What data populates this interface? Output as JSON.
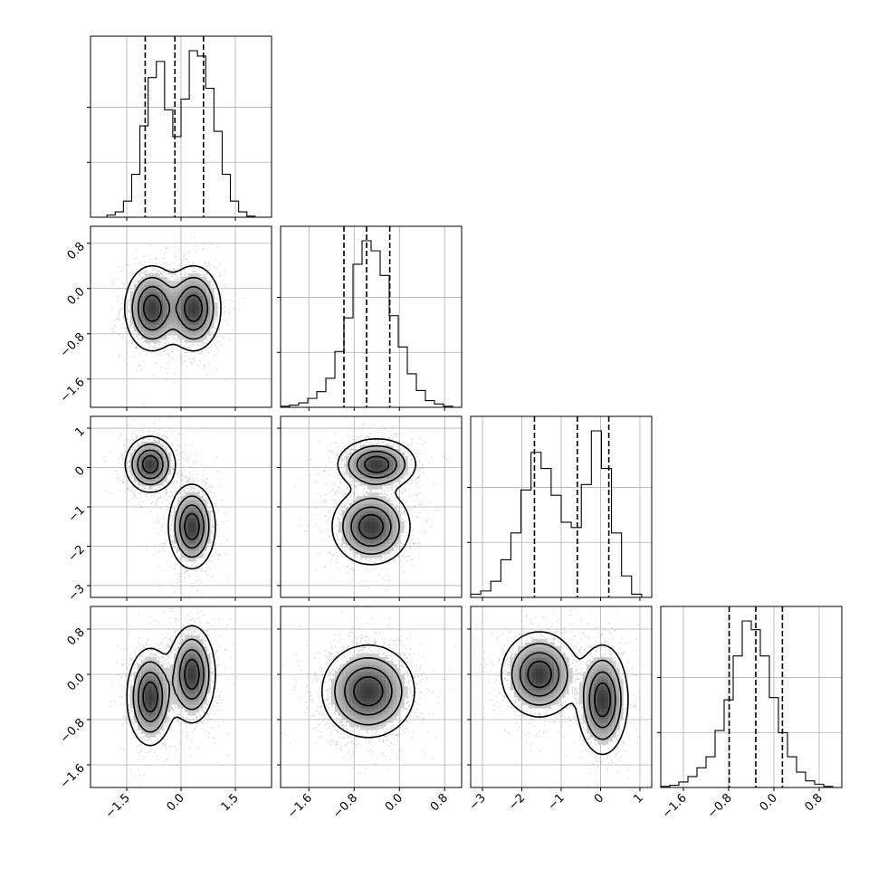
{
  "chart_data": {
    "type": "corner",
    "parameters": [
      {
        "index": 0,
        "range": [
          -2.5,
          2.5
        ],
        "ticks": [
          -1.5,
          0.0,
          1.5
        ],
        "tick_labels": [
          "−1.5",
          "0.0",
          "1.5"
        ],
        "quantiles": [
          -0.99,
          -0.17,
          0.62
        ]
      },
      {
        "index": 1,
        "range": [
          -2.1,
          1.1
        ],
        "ticks": [
          -1.6,
          -0.8,
          0.0,
          0.8
        ],
        "tick_labels": [
          "−1.6",
          "−0.8",
          "0.0",
          "0.8"
        ],
        "quantiles": [
          -0.98,
          -0.58,
          -0.17
        ]
      },
      {
        "index": 2,
        "range": [
          -3.3,
          1.3
        ],
        "ticks": [
          -3,
          -2,
          -1,
          0,
          1
        ],
        "tick_labels": [
          "−3",
          "−2",
          "−1",
          "0",
          "1"
        ],
        "quantiles": [
          -1.68,
          -0.59,
          0.21
        ]
      },
      {
        "index": 3,
        "range": [
          -2.0,
          1.2
        ],
        "ticks": [
          -1.6,
          -0.8,
          0.0,
          0.8
        ],
        "tick_labels": [
          "−1.6",
          "−0.8",
          "0.0",
          "0.8"
        ],
        "quantiles": [
          -0.79,
          -0.32,
          0.15
        ]
      }
    ],
    "histograms": [
      {
        "param": 0,
        "bin_range": [
          -2.5,
          2.5
        ],
        "counts": [
          0,
          0,
          2,
          5,
          15,
          40,
          85,
          130,
          145,
          100,
          75,
          110,
          155,
          150,
          120,
          80,
          40,
          15,
          5,
          1,
          0,
          0
        ]
      },
      {
        "param": 1,
        "bin_range": [
          -2.1,
          1.1
        ],
        "counts": [
          1,
          2,
          4,
          8,
          14,
          26,
          50,
          80,
          128,
          149,
          140,
          118,
          82,
          54,
          30,
          15,
          6,
          3,
          1,
          0
        ]
      },
      {
        "param": 2,
        "bin_range": [
          -3.3,
          1.3
        ],
        "counts": [
          3,
          6,
          15,
          35,
          60,
          100,
          135,
          120,
          95,
          70,
          65,
          105,
          155,
          120,
          60,
          20,
          3,
          0
        ]
      },
      {
        "param": 3,
        "bin_range": [
          -2.0,
          1.2
        ],
        "counts": [
          1,
          2,
          5,
          10,
          18,
          28,
          52,
          80,
          120,
          152,
          144,
          120,
          82,
          50,
          28,
          14,
          6,
          3,
          1,
          0
        ]
      }
    ],
    "joint_panels": [
      {
        "x_param": 0,
        "y_param": 1,
        "modes": [
          {
            "x": -0.8,
            "y": -0.35,
            "sx": 0.35,
            "sy": 0.35,
            "r": 0
          },
          {
            "x": 0.35,
            "y": -0.35,
            "sx": 0.35,
            "sy": 0.35,
            "r": 0
          }
        ]
      },
      {
        "x_param": 0,
        "y_param": 2,
        "modes": [
          {
            "x": -0.85,
            "y": 0.08,
            "sx": 0.32,
            "sy": 0.33,
            "r": 0
          },
          {
            "x": 0.3,
            "y": -1.5,
            "sx": 0.3,
            "sy": 0.5,
            "r": 0
          }
        ]
      },
      {
        "x_param": 1,
        "y_param": 2,
        "modes": [
          {
            "x": -0.4,
            "y": 0.08,
            "sx": 0.32,
            "sy": 0.3,
            "r": 0
          },
          {
            "x": -0.5,
            "y": -1.5,
            "sx": 0.32,
            "sy": 0.45,
            "r": 0
          }
        ]
      },
      {
        "x_param": 0,
        "y_param": 3,
        "modes": [
          {
            "x": -0.85,
            "y": -0.4,
            "sx": 0.3,
            "sy": 0.4,
            "r": 0
          },
          {
            "x": 0.3,
            "y": 0.0,
            "sx": 0.3,
            "sy": 0.4,
            "r": 0
          }
        ]
      },
      {
        "x_param": 1,
        "y_param": 3,
        "modes": [
          {
            "x": -0.55,
            "y": -0.3,
            "sx": 0.38,
            "sy": 0.38,
            "r": 0
          }
        ]
      },
      {
        "x_param": 2,
        "y_param": 3,
        "modes": [
          {
            "x": -1.55,
            "y": 0.0,
            "sx": 0.45,
            "sy": 0.35,
            "r": 0
          },
          {
            "x": 0.05,
            "y": -0.45,
            "sx": 0.3,
            "sy": 0.45,
            "r": 0
          }
        ]
      }
    ],
    "contour_levels": [
      0.9,
      0.7,
      0.45,
      0.2
    ],
    "grid": true,
    "colors": {
      "line": "#000000",
      "scatter": "#9a9a9a",
      "grid": "#b0b0b0"
    }
  }
}
